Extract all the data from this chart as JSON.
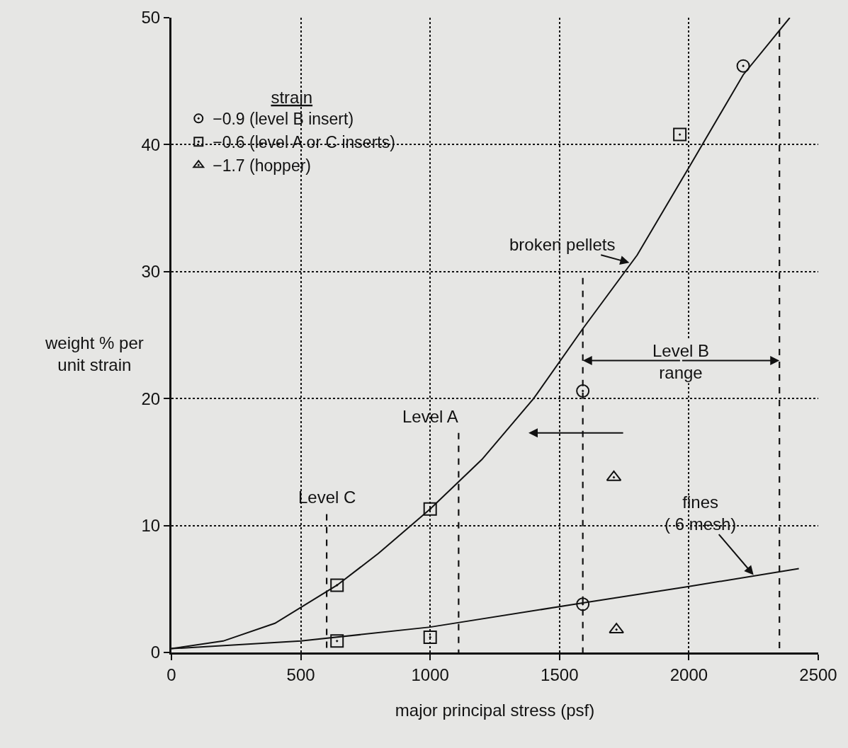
{
  "chart_data": {
    "type": "scatter",
    "xlabel": "major principal stress (psf)",
    "ylabel": "weight % per\nunit strain",
    "legend_title": "strain",
    "legend": "top left",
    "grid": true,
    "xlim": [
      0,
      2500
    ],
    "xticks": [
      0,
      500,
      1000,
      1500,
      2000,
      2500
    ],
    "ylim": [
      0,
      50
    ],
    "yticks": [
      0,
      10,
      20,
      30,
      40,
      50
    ],
    "series": [
      {
        "name": "−0.9 (level B insert)",
        "marker": "circle",
        "color": "#111111",
        "x": [
          1590,
          1590,
          2210
        ],
        "values": [
          20.6,
          3.8,
          46.2
        ]
      },
      {
        "name": "−0.6 (level A or C inserts)",
        "marker": "square",
        "color": "#111111",
        "x": [
          640,
          640,
          1000,
          1000,
          1965
        ],
        "values": [
          5.3,
          0.9,
          11.3,
          1.2,
          40.8
        ]
      },
      {
        "name": "−1.7 (hopper)",
        "marker": "triangle",
        "color": "#111111",
        "x": [
          1710,
          1720
        ],
        "values": [
          13.8,
          1.8
        ]
      },
      {
        "type": "line",
        "color": "#111111",
        "line_style": "solid",
        "x": [
          0,
          200,
          400,
          640,
          800,
          1000,
          1200,
          1400,
          1590,
          1800,
          2000,
          2210,
          2390
        ],
        "values": [
          0.3,
          0.9,
          2.3,
          5.3,
          7.8,
          11.3,
          15.2,
          20,
          25.5,
          31.3,
          38.2,
          45.5,
          50
        ]
      },
      {
        "type": "line",
        "color": "#111111",
        "line_style": "solid",
        "x": [
          0,
          500,
          1000,
          1590,
          2000,
          2425
        ],
        "values": [
          0.3,
          0.9,
          2.0,
          3.9,
          5.2,
          6.6
        ]
      },
      {
        "type": "line",
        "color": "#111111",
        "line_style": "dashed",
        "x": [
          600,
          600
        ],
        "values": [
          10.9,
          0
        ]
      },
      {
        "type": "line",
        "color": "#111111",
        "line_style": "dashed",
        "x": [
          1110,
          1110
        ],
        "values": [
          17.3,
          0
        ]
      },
      {
        "type": "line",
        "color": "#111111",
        "line_style": "dashed",
        "x": [
          1590,
          1590
        ],
        "values": [
          29.5,
          0
        ]
      },
      {
        "type": "line",
        "color": "#111111",
        "line_style": "dashed",
        "x": [
          2350,
          2350
        ],
        "values": [
          50,
          0
        ]
      }
    ],
    "annotations": [
      {
        "text": "Level C",
        "x": 600,
        "y": 10.9
      },
      {
        "text": "Level A",
        "x": 1110,
        "y": 17.3
      },
      {
        "text": "Level B\nrange",
        "x": 1590,
        "y": 23
      },
      {
        "text": "broken pellets",
        "x": 1770,
        "y": 30.7
      },
      {
        "text": "fines\n( 6 mesh)",
        "x": 2250,
        "y": 6.1
      }
    ]
  }
}
